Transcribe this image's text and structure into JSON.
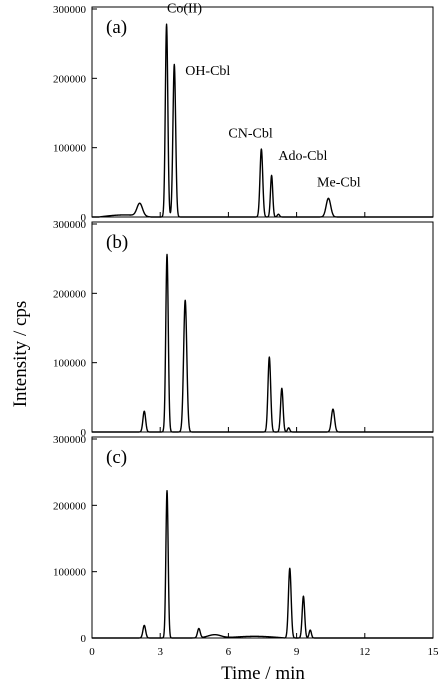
{
  "chart_data": {
    "type": "line",
    "ylabel": "Intensity / cps",
    "xlabel": "Time / min",
    "xlim": [
      0,
      15
    ],
    "xticks": [
      0,
      3,
      6,
      9,
      12,
      15
    ],
    "ylim": [
      0,
      300000
    ],
    "yticks": [
      0,
      100000,
      200000,
      300000
    ],
    "panels": [
      {
        "label": "(a)",
        "peaks": [
          {
            "t": 2.1,
            "h": 18000,
            "w": 0.12
          },
          {
            "t": 3.28,
            "h": 278000,
            "w": 0.055
          },
          {
            "t": 3.62,
            "h": 220000,
            "w": 0.06
          },
          {
            "t": 7.45,
            "h": 98000,
            "w": 0.06
          },
          {
            "t": 7.9,
            "h": 60000,
            "w": 0.05
          },
          {
            "t": 8.2,
            "h": 4000,
            "w": 0.05
          },
          {
            "t": 10.4,
            "h": 27000,
            "w": 0.1
          }
        ],
        "baseline": [
          {
            "t0": 0.3,
            "t1": 2.6,
            "h": 3000
          }
        ],
        "annotations": [
          {
            "text": "Co(II)",
            "t": 3.3,
            "y": 295000
          },
          {
            "text": "OH-Cbl",
            "t": 4.1,
            "y": 205000
          },
          {
            "text": "CN-Cbl",
            "t": 6.0,
            "y": 115000
          },
          {
            "text": "Ado-Cbl",
            "t": 8.2,
            "y": 82000
          },
          {
            "text": "Me-Cbl",
            "t": 9.9,
            "y": 44000
          }
        ]
      },
      {
        "label": "(b)",
        "peaks": [
          {
            "t": 2.3,
            "h": 30000,
            "w": 0.06
          },
          {
            "t": 3.3,
            "h": 256000,
            "w": 0.055
          },
          {
            "t": 4.1,
            "h": 190000,
            "w": 0.07
          },
          {
            "t": 7.8,
            "h": 108000,
            "w": 0.06
          },
          {
            "t": 8.35,
            "h": 63000,
            "w": 0.055
          },
          {
            "t": 8.65,
            "h": 6000,
            "w": 0.05
          },
          {
            "t": 10.6,
            "h": 33000,
            "w": 0.07
          }
        ],
        "baseline": [],
        "annotations": []
      },
      {
        "label": "(c)",
        "peaks": [
          {
            "t": 2.3,
            "h": 19000,
            "w": 0.06
          },
          {
            "t": 3.3,
            "h": 222000,
            "w": 0.05
          },
          {
            "t": 4.7,
            "h": 14000,
            "w": 0.06
          },
          {
            "t": 5.4,
            "h": 5000,
            "w": 0.3
          },
          {
            "t": 8.7,
            "h": 105000,
            "w": 0.06
          },
          {
            "t": 9.3,
            "h": 63000,
            "w": 0.055
          },
          {
            "t": 9.6,
            "h": 12000,
            "w": 0.05
          }
        ],
        "baseline": [
          {
            "t0": 5.8,
            "t1": 8.5,
            "h": 2500
          }
        ],
        "annotations": []
      }
    ]
  }
}
